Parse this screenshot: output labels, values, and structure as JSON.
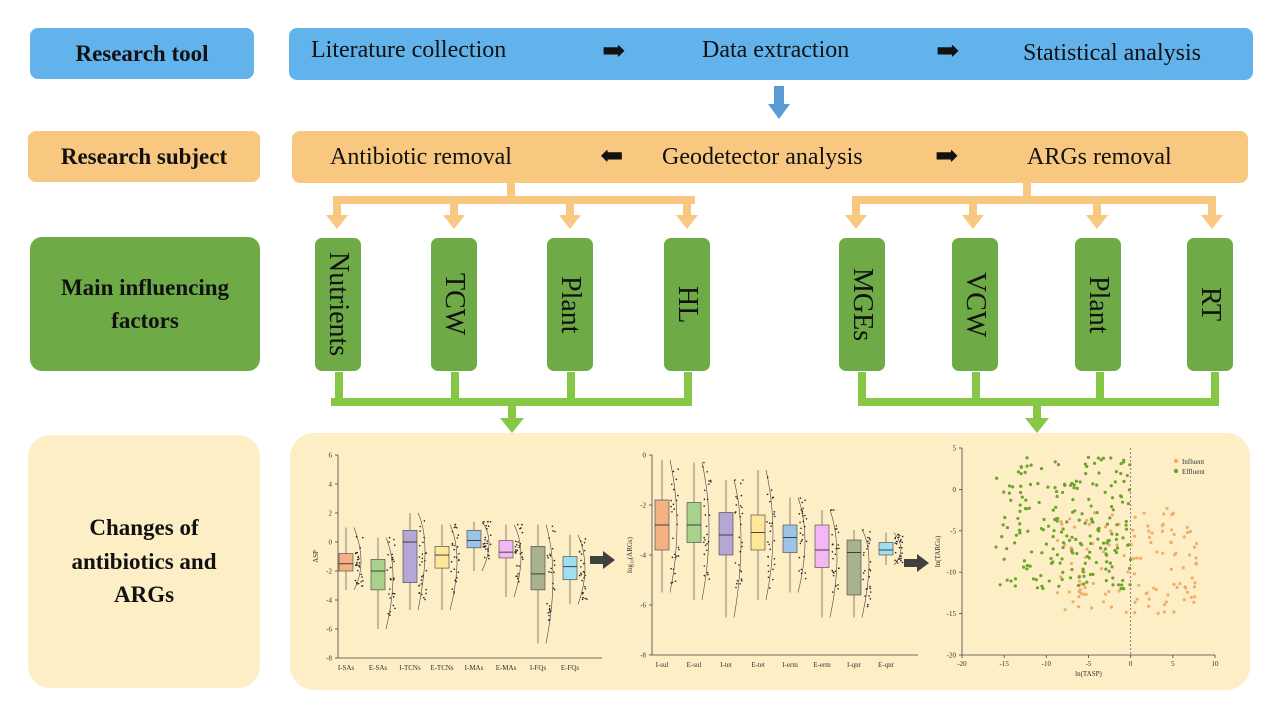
{
  "rows": {
    "tool": {
      "label": "Research tool",
      "steps": [
        "Literature collection",
        "Data extraction",
        "Statistical analysis"
      ]
    },
    "subject": {
      "label": "Research subject",
      "left": "Antibiotic removal",
      "center": "Geodetector analysis",
      "right": "ARGs removal"
    },
    "factors": {
      "label": "Main influencing factors",
      "antibiotic": [
        "Nutrients",
        "TCW",
        "Plant",
        "HL"
      ],
      "args": [
        "MGEs",
        "VCW",
        "Plant",
        "RT"
      ]
    },
    "changes": {
      "label": "Changes of antibiotics and ARGs"
    }
  },
  "colors": {
    "blue": "#62b3ec",
    "orange": "#f8c880",
    "green": "#6eaa45",
    "light_green": "#86c845",
    "cream": "#fdeec6",
    "arrow_blue": "#5b9bd5"
  },
  "chart_data": [
    {
      "type": "box",
      "title": "",
      "ylabel": "ASP",
      "ylim": [
        -8,
        6
      ],
      "yticks": [
        "-8",
        "-6",
        "-4",
        "-2",
        "0",
        "2",
        "4",
        "6"
      ],
      "categories": [
        "I-SAs",
        "E-SAs",
        "I-TCNs",
        "E-TCNs",
        "I-MAs",
        "E-MAs",
        "I-FQs",
        "E-FQs"
      ],
      "colors": [
        "#f4b183",
        "#a9d18e",
        "#b4a7d6",
        "#ffe699",
        "#9dc3e6",
        "#f4b6f4",
        "#a9b18e",
        "#9fe0f0"
      ],
      "series": [
        {
          "name": "I-SAs",
          "q1": -2.0,
          "median": -1.5,
          "q3": -0.8,
          "min": -3.3,
          "max": 1.0
        },
        {
          "name": "E-SAs",
          "q1": -3.3,
          "median": -2.0,
          "q3": -1.2,
          "min": -6.0,
          "max": 0.3
        },
        {
          "name": "I-TCNs",
          "q1": -2.8,
          "median": 0.0,
          "q3": 0.8,
          "min": -4.7,
          "max": 2.0
        },
        {
          "name": "E-TCNs",
          "q1": -1.8,
          "median": -0.9,
          "q3": -0.3,
          "min": -4.7,
          "max": 1.2
        },
        {
          "name": "I-MAs",
          "q1": -0.4,
          "median": 0.1,
          "q3": 0.8,
          "min": -2.0,
          "max": 1.4
        },
        {
          "name": "E-MAs",
          "q1": -1.1,
          "median": -0.7,
          "q3": 0.1,
          "min": -3.8,
          "max": 1.2
        },
        {
          "name": "I-FQs",
          "q1": -3.3,
          "median": -2.2,
          "q3": -0.3,
          "min": -7.0,
          "max": 1.2
        },
        {
          "name": "E-FQs",
          "q1": -2.6,
          "median": -1.7,
          "q3": -1.0,
          "min": -4.3,
          "max": 0.5
        }
      ]
    },
    {
      "type": "box",
      "title": "",
      "ylabel": "log₁₀(ARGs)",
      "ylim": [
        -8,
        0
      ],
      "yticks": [
        "0",
        "-2",
        "-4",
        "-6",
        "-8"
      ],
      "categories": [
        "I-sul",
        "E-sul",
        "I-tet",
        "E-tet",
        "I-erm",
        "E-erm",
        "I-qnr",
        "E-qnr"
      ],
      "colors": [
        "#f4b183",
        "#a9d18e",
        "#b4a7d6",
        "#ffe699",
        "#9dc3e6",
        "#f4b6f4",
        "#a9b18e",
        "#9fe0f0"
      ],
      "series": [
        {
          "name": "I-sul",
          "q1": -3.8,
          "median": -2.8,
          "q3": -1.8,
          "min": -5.5,
          "max": -0.2
        },
        {
          "name": "E-sul",
          "q1": -3.5,
          "median": -2.8,
          "q3": -1.9,
          "min": -5.8,
          "max": -0.3
        },
        {
          "name": "I-tet",
          "q1": -4.0,
          "median": -3.2,
          "q3": -2.3,
          "min": -6.5,
          "max": -1.0
        },
        {
          "name": "E-tet",
          "q1": -3.8,
          "median": -3.1,
          "q3": -2.4,
          "min": -5.8,
          "max": -0.6
        },
        {
          "name": "I-erm",
          "q1": -3.9,
          "median": -3.3,
          "q3": -2.8,
          "min": -5.5,
          "max": -1.7
        },
        {
          "name": "E-erm",
          "q1": -4.5,
          "median": -3.8,
          "q3": -2.8,
          "min": -6.5,
          "max": -2.2
        },
        {
          "name": "I-qnr",
          "q1": -5.6,
          "median": -3.9,
          "q3": -3.4,
          "min": -6.5,
          "max": -3.0
        },
        {
          "name": "E-qnr",
          "q1": -4.0,
          "median": -3.8,
          "q3": -3.5,
          "min": -4.4,
          "max": -3.1
        }
      ]
    },
    {
      "type": "scatter",
      "title": "",
      "xlabel": "ln(TASP)",
      "ylabel": "ln(TARGs)",
      "xlim": [
        -20,
        10
      ],
      "ylim": [
        -20,
        5
      ],
      "xticks": [
        "-20",
        "-15",
        "-10",
        "-5",
        "0",
        "5",
        "10"
      ],
      "yticks": [
        "5",
        "0",
        "-5",
        "-10",
        "-15",
        "-20"
      ],
      "legend": [
        "Influent",
        "Effluent"
      ],
      "legend_position": "top-right",
      "series": [
        {
          "name": "Influent",
          "color": "#f0ad6b",
          "x_range": [
            -9,
            8
          ],
          "y_range": [
            -15,
            -2
          ],
          "count": 120
        },
        {
          "name": "Effluent",
          "color": "#6aa629",
          "x_range": [
            -16,
            0
          ],
          "y_range": [
            -12,
            4
          ],
          "count": 220
        }
      ]
    }
  ]
}
